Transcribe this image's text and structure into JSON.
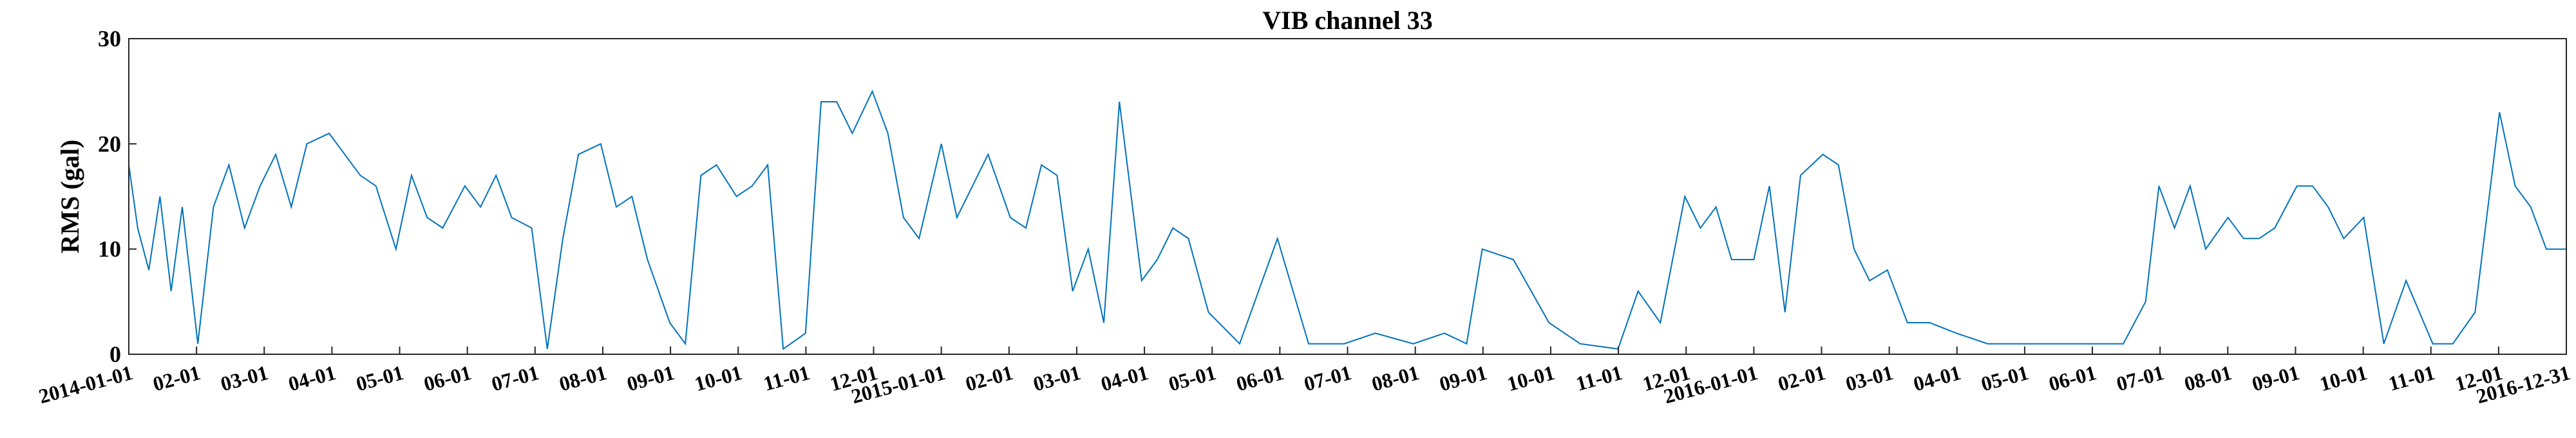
{
  "chart_data": {
    "type": "line",
    "title": "VIB channel 33",
    "xlabel": "",
    "ylabel": "RMS (gal)",
    "xlim": [
      "2014-01-01",
      "2016-12-31"
    ],
    "ylim": [
      0,
      30
    ],
    "yticks": [
      0,
      10,
      20,
      30
    ],
    "xtick_labels": [
      "2014-01-01",
      "02-01",
      "03-01",
      "04-01",
      "05-01",
      "06-01",
      "07-01",
      "08-01",
      "09-01",
      "10-01",
      "11-01",
      "12-01",
      "2015-01-01",
      "02-01",
      "03-01",
      "04-01",
      "05-01",
      "06-01",
      "07-01",
      "08-01",
      "09-01",
      "10-01",
      "11-01",
      "12-01",
      "2016-01-01",
      "02-01",
      "03-01",
      "04-01",
      "05-01",
      "06-01",
      "07-01",
      "08-01",
      "09-01",
      "10-01",
      "11-01",
      "12-01",
      "2016-12-31"
    ],
    "grid": false,
    "series_color": "#0072BD",
    "series": [
      {
        "x": [
          "2014-01-01",
          "2014-01-05",
          "2014-01-10",
          "2014-01-15",
          "2014-01-20",
          "2014-01-25",
          "2014-02-01",
          "2014-02-08",
          "2014-02-15",
          "2014-02-22",
          "2014-03-01",
          "2014-03-08",
          "2014-03-15",
          "2014-03-22",
          "2014-04-01",
          "2014-04-08",
          "2014-04-15",
          "2014-04-22",
          "2014-05-01",
          "2014-05-08",
          "2014-05-15",
          "2014-05-22",
          "2014-06-01",
          "2014-06-08",
          "2014-06-15",
          "2014-06-22",
          "2014-07-01",
          "2014-07-08",
          "2014-07-15",
          "2014-07-22",
          "2014-08-01",
          "2014-08-08",
          "2014-08-15",
          "2014-08-22",
          "2014-09-01",
          "2014-09-08",
          "2014-09-15",
          "2014-09-22",
          "2014-10-01",
          "2014-10-08",
          "2014-10-15",
          "2014-10-22",
          "2014-11-01",
          "2014-11-08",
          "2014-11-15",
          "2014-11-22",
          "2014-12-01",
          "2014-12-08",
          "2014-12-15",
          "2014-12-22",
          "2015-01-01",
          "2015-01-08",
          "2015-01-15",
          "2015-01-22",
          "2015-02-01",
          "2015-02-08",
          "2015-02-15",
          "2015-02-22",
          "2015-03-01",
          "2015-03-08",
          "2015-03-15",
          "2015-03-22",
          "2015-04-01",
          "2015-04-08",
          "2015-04-15",
          "2015-04-22",
          "2015-05-01",
          "2015-05-15",
          "2015-06-01",
          "2015-06-15",
          "2015-07-01",
          "2015-07-15",
          "2015-08-01",
          "2015-08-15",
          "2015-08-25",
          "2015-09-01",
          "2015-09-15",
          "2015-10-01",
          "2015-10-15",
          "2015-11-01",
          "2015-11-10",
          "2015-11-20",
          "2015-12-01",
          "2015-12-08",
          "2015-12-15",
          "2015-12-22",
          "2016-01-01",
          "2016-01-08",
          "2016-01-15",
          "2016-01-22",
          "2016-02-01",
          "2016-02-08",
          "2016-02-15",
          "2016-02-22",
          "2016-03-01",
          "2016-03-10",
          "2016-03-20",
          "2016-04-01",
          "2016-04-15",
          "2016-05-01",
          "2016-05-15",
          "2016-06-01",
          "2016-06-15",
          "2016-06-25",
          "2016-07-01",
          "2016-07-08",
          "2016-07-15",
          "2016-07-22",
          "2016-08-01",
          "2016-08-08",
          "2016-08-15",
          "2016-08-22",
          "2016-09-01",
          "2016-09-08",
          "2016-09-15",
          "2016-09-22",
          "2016-10-01",
          "2016-10-10",
          "2016-10-20",
          "2016-11-01",
          "2016-11-10",
          "2016-11-20",
          "2016-12-01",
          "2016-12-08",
          "2016-12-15",
          "2016-12-22",
          "2016-12-31"
        ],
        "y": [
          18,
          12,
          8,
          15,
          6,
          14,
          1,
          14,
          18,
          12,
          16,
          19,
          14,
          20,
          21,
          19,
          17,
          16,
          10,
          17,
          13,
          12,
          16,
          14,
          17,
          13,
          12,
          0.5,
          11,
          19,
          20,
          14,
          15,
          9,
          3,
          1,
          17,
          18,
          15,
          16,
          18,
          0.5,
          2,
          24,
          24,
          21,
          25,
          21,
          13,
          11,
          20,
          13,
          16,
          19,
          13,
          12,
          18,
          17,
          6,
          10,
          3,
          24,
          7,
          9,
          12,
          11,
          4,
          1,
          11,
          1,
          1,
          2,
          1,
          2,
          1,
          10,
          9,
          3,
          1,
          0.5,
          6,
          3,
          15,
          12,
          14,
          9,
          9,
          16,
          4,
          17,
          19,
          18,
          10,
          7,
          8,
          3,
          3,
          2,
          1,
          1,
          1,
          1,
          1,
          5,
          16,
          12,
          16,
          10,
          13,
          11,
          11,
          12,
          16,
          16,
          14,
          11,
          13,
          1,
          7,
          1,
          1,
          4,
          23,
          16,
          14,
          10,
          10
        ]
      }
    ]
  }
}
